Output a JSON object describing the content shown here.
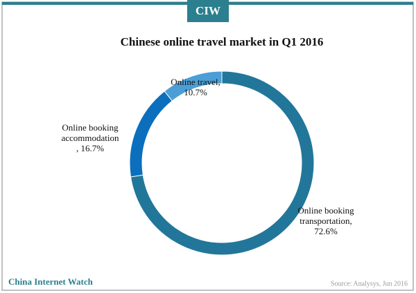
{
  "header": {
    "badge": "CIW"
  },
  "chart_data": {
    "type": "donut",
    "title": "Chinese online travel market in Q1 2016",
    "categories": [
      "Online booking transportation,",
      "Online booking accommodation",
      "Online travel,"
    ],
    "values": [
      72.6,
      16.7,
      10.7
    ],
    "value_labels": [
      "72.6%",
      ", 16.7%",
      "10.7%"
    ],
    "colors": [
      "#22769a",
      "#0b6fbd",
      "#4b9fd6"
    ]
  },
  "footer": {
    "brand": "China Internet Watch",
    "source": "Source: Analysys, Jun 2016"
  }
}
